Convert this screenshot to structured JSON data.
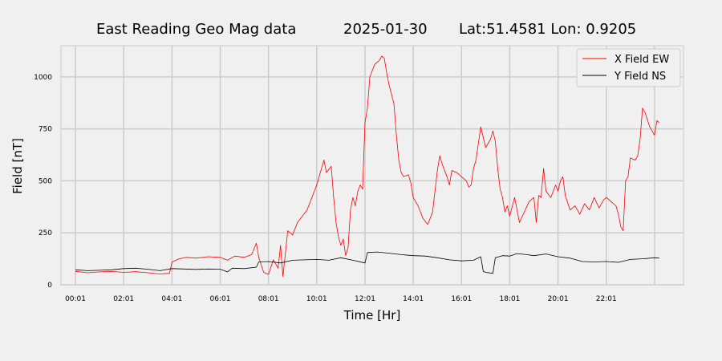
{
  "chart_data": {
    "type": "line",
    "title": {
      "station": "East Reading Geo Mag data",
      "date": "2025-01-30",
      "location": "Lat:51.4581  Lon: 0.9205"
    },
    "xlabel": "Time  [Hr]",
    "ylabel": "Field  [nT]",
    "xlim": [
      -0.6,
      25.2
    ],
    "ylim": [
      0,
      1150
    ],
    "x_ticks": [
      {
        "value": 0,
        "label": "00:01"
      },
      {
        "value": 2,
        "label": "02:01"
      },
      {
        "value": 4,
        "label": "04:01"
      },
      {
        "value": 6,
        "label": "06:01"
      },
      {
        "value": 8,
        "label": "08:01"
      },
      {
        "value": 10,
        "label": "10:01"
      },
      {
        "value": 12,
        "label": "12:01"
      },
      {
        "value": 14,
        "label": "14:01"
      },
      {
        "value": 16,
        "label": "16:01"
      },
      {
        "value": 18,
        "label": "18:01"
      },
      {
        "value": 20,
        "label": "20:01"
      },
      {
        "value": 22,
        "label": "22:01"
      }
    ],
    "x_grid_extra": [
      24
    ],
    "y_ticks": [
      0,
      250,
      500,
      750,
      1000
    ],
    "grid": true,
    "legend_position": "top-right",
    "series": [
      {
        "name": "X Field EW",
        "color": "#ff0000",
        "points": [
          [
            0,
            65
          ],
          [
            0.5,
            58
          ],
          [
            1,
            62
          ],
          [
            1.5,
            64
          ],
          [
            2,
            60
          ],
          [
            2.5,
            63
          ],
          [
            3,
            58
          ],
          [
            3.5,
            52
          ],
          [
            3.9,
            55
          ],
          [
            4,
            110
          ],
          [
            4.3,
            125
          ],
          [
            4.6,
            132
          ],
          [
            5,
            128
          ],
          [
            5.5,
            135
          ],
          [
            6,
            132
          ],
          [
            6.3,
            118
          ],
          [
            6.6,
            138
          ],
          [
            7,
            132
          ],
          [
            7.3,
            145
          ],
          [
            7.5,
            200
          ],
          [
            7.6,
            130
          ],
          [
            7.8,
            60
          ],
          [
            8,
            50
          ],
          [
            8.2,
            120
          ],
          [
            8.4,
            80
          ],
          [
            8.5,
            190
          ],
          [
            8.6,
            40
          ],
          [
            8.8,
            260
          ],
          [
            9,
            240
          ],
          [
            9.2,
            300
          ],
          [
            9.4,
            330
          ],
          [
            9.6,
            360
          ],
          [
            9.8,
            420
          ],
          [
            10,
            480
          ],
          [
            10.2,
            560
          ],
          [
            10.3,
            600
          ],
          [
            10.4,
            540
          ],
          [
            10.6,
            570
          ],
          [
            10.7,
            420
          ],
          [
            10.8,
            300
          ],
          [
            10.9,
            230
          ],
          [
            11,
            190
          ],
          [
            11.1,
            220
          ],
          [
            11.2,
            140
          ],
          [
            11.3,
            180
          ],
          [
            11.4,
            360
          ],
          [
            11.5,
            420
          ],
          [
            11.6,
            380
          ],
          [
            11.7,
            450
          ],
          [
            11.8,
            480
          ],
          [
            11.9,
            460
          ],
          [
            12,
            780
          ],
          [
            12.1,
            850
          ],
          [
            12.2,
            1000
          ],
          [
            12.4,
            1060
          ],
          [
            12.6,
            1080
          ],
          [
            12.7,
            1100
          ],
          [
            12.8,
            1090
          ],
          [
            12.9,
            1020
          ],
          [
            13,
            960
          ],
          [
            13.2,
            870
          ],
          [
            13.3,
            720
          ],
          [
            13.4,
            600
          ],
          [
            13.5,
            540
          ],
          [
            13.6,
            520
          ],
          [
            13.8,
            530
          ],
          [
            13.9,
            490
          ],
          [
            14,
            420
          ],
          [
            14.2,
            380
          ],
          [
            14.4,
            320
          ],
          [
            14.6,
            290
          ],
          [
            14.8,
            350
          ],
          [
            15,
            550
          ],
          [
            15.1,
            620
          ],
          [
            15.2,
            580
          ],
          [
            15.4,
            520
          ],
          [
            15.5,
            480
          ],
          [
            15.6,
            550
          ],
          [
            15.8,
            540
          ],
          [
            16,
            520
          ],
          [
            16.2,
            500
          ],
          [
            16.3,
            470
          ],
          [
            16.4,
            480
          ],
          [
            16.5,
            560
          ],
          [
            16.6,
            600
          ],
          [
            16.7,
            680
          ],
          [
            16.8,
            760
          ],
          [
            17,
            660
          ],
          [
            17.2,
            700
          ],
          [
            17.3,
            740
          ],
          [
            17.4,
            690
          ],
          [
            17.5,
            560
          ],
          [
            17.6,
            460
          ],
          [
            17.7,
            420
          ],
          [
            17.8,
            350
          ],
          [
            17.9,
            380
          ],
          [
            18,
            330
          ],
          [
            18.2,
            420
          ],
          [
            18.4,
            300
          ],
          [
            18.6,
            350
          ],
          [
            18.8,
            400
          ],
          [
            19,
            420
          ],
          [
            19.1,
            300
          ],
          [
            19.2,
            430
          ],
          [
            19.3,
            420
          ],
          [
            19.4,
            560
          ],
          [
            19.5,
            450
          ],
          [
            19.7,
            420
          ],
          [
            19.9,
            480
          ],
          [
            20,
            450
          ],
          [
            20.1,
            500
          ],
          [
            20.2,
            520
          ],
          [
            20.3,
            430
          ],
          [
            20.5,
            360
          ],
          [
            20.7,
            380
          ],
          [
            20.9,
            340
          ],
          [
            21.1,
            390
          ],
          [
            21.3,
            360
          ],
          [
            21.5,
            420
          ],
          [
            21.7,
            370
          ],
          [
            21.9,
            410
          ],
          [
            22,
            420
          ],
          [
            22.2,
            400
          ],
          [
            22.4,
            380
          ],
          [
            22.5,
            340
          ],
          [
            22.6,
            280
          ],
          [
            22.7,
            260
          ],
          [
            22.8,
            500
          ],
          [
            22.9,
            520
          ],
          [
            23,
            610
          ],
          [
            23.2,
            600
          ],
          [
            23.3,
            620
          ],
          [
            23.4,
            700
          ],
          [
            23.5,
            850
          ],
          [
            23.6,
            830
          ],
          [
            23.8,
            760
          ],
          [
            24,
            720
          ],
          [
            24.1,
            790
          ],
          [
            24.2,
            780
          ]
        ]
      },
      {
        "name": "Y Field NS",
        "color": "#000000",
        "points": [
          [
            0,
            72
          ],
          [
            0.5,
            68
          ],
          [
            1,
            70
          ],
          [
            1.5,
            72
          ],
          [
            2,
            78
          ],
          [
            2.5,
            80
          ],
          [
            3,
            75
          ],
          [
            3.5,
            68
          ],
          [
            4,
            78
          ],
          [
            4.5,
            76
          ],
          [
            5,
            74
          ],
          [
            5.5,
            76
          ],
          [
            6,
            75
          ],
          [
            6.3,
            62
          ],
          [
            6.5,
            80
          ],
          [
            7,
            78
          ],
          [
            7.5,
            85
          ],
          [
            7.6,
            110
          ],
          [
            8,
            112
          ],
          [
            8.5,
            105
          ],
          [
            9,
            118
          ],
          [
            9.5,
            120
          ],
          [
            10,
            122
          ],
          [
            10.5,
            118
          ],
          [
            11,
            130
          ],
          [
            11.5,
            118
          ],
          [
            12,
            105
          ],
          [
            12.1,
            155
          ],
          [
            12.5,
            158
          ],
          [
            13,
            152
          ],
          [
            13.5,
            145
          ],
          [
            14,
            140
          ],
          [
            14.5,
            138
          ],
          [
            15,
            130
          ],
          [
            15.5,
            120
          ],
          [
            16,
            115
          ],
          [
            16.5,
            118
          ],
          [
            16.8,
            135
          ],
          [
            16.9,
            65
          ],
          [
            17,
            60
          ],
          [
            17.3,
            55
          ],
          [
            17.4,
            130
          ],
          [
            17.7,
            140
          ],
          [
            18,
            138
          ],
          [
            18.3,
            150
          ],
          [
            18.7,
            145
          ],
          [
            19,
            140
          ],
          [
            19.5,
            148
          ],
          [
            20,
            135
          ],
          [
            20.5,
            128
          ],
          [
            21,
            112
          ],
          [
            21.5,
            110
          ],
          [
            22,
            112
          ],
          [
            22.5,
            108
          ],
          [
            23,
            122
          ],
          [
            23.5,
            125
          ],
          [
            24,
            130
          ],
          [
            24.2,
            128
          ]
        ]
      }
    ]
  }
}
